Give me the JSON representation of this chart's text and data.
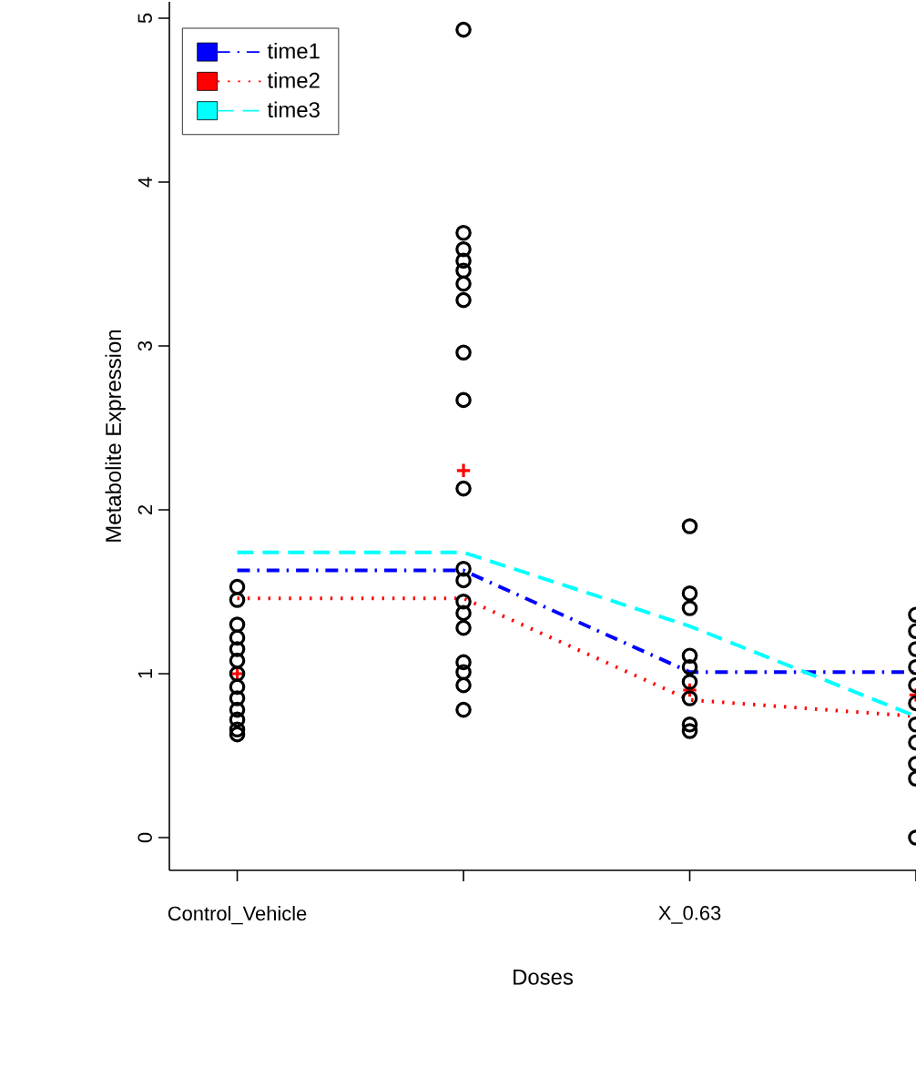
{
  "chart_data": {
    "type": "line",
    "xlabel": "Doses",
    "ylabel": "Metabolite Expression",
    "categories": [
      "Control_Vehicle",
      null,
      "X_0.63",
      null
    ],
    "ylim": [
      -0.2,
      5.1
    ],
    "yticks": [
      0,
      1,
      2,
      3,
      4,
      5
    ],
    "legend": "top left",
    "grid": false,
    "series": [
      {
        "name": "time1",
        "color": "#0000ff",
        "line_style": "dashdot",
        "marker": "none",
        "values": [
          1.63,
          1.63,
          1.01,
          1.01
        ]
      },
      {
        "name": "time2",
        "color": "#ff0000",
        "line_style": "dotted",
        "marker": "none",
        "values": [
          1.46,
          1.46,
          0.84,
          0.74
        ]
      },
      {
        "name": "time3",
        "color": "#00ffff",
        "line_style": "dashed",
        "marker": "none",
        "values": [
          1.74,
          1.74,
          1.29,
          0.74
        ]
      },
      {
        "type": "scatter",
        "color": "#ff0000",
        "marker": "cross",
        "values": [
          1.0,
          2.24,
          0.9,
          0.87
        ]
      },
      {
        "type": "scatter",
        "color": "#000000",
        "marker": "circle",
        "values": [
          1.53,
          4.93,
          1.9,
          1.36
        ]
      },
      {
        "type": "scatter",
        "color": "#000000",
        "marker": "circle",
        "values": [
          1.45,
          3.69,
          1.49,
          1.26
        ]
      },
      {
        "type": "scatter",
        "color": "#000000",
        "marker": "circle",
        "values": [
          1.3,
          3.59,
          1.4,
          1.15
        ]
      },
      {
        "type": "scatter",
        "color": "#000000",
        "marker": "circle",
        "values": [
          1.22,
          3.52,
          1.11,
          1.04
        ]
      },
      {
        "type": "scatter",
        "color": "#000000",
        "marker": "circle",
        "values": [
          1.15,
          3.46,
          1.04,
          0.93
        ]
      },
      {
        "type": "scatter",
        "color": "#000000",
        "marker": "circle",
        "values": [
          1.08,
          3.38,
          0.95,
          0.82
        ]
      },
      {
        "type": "scatter",
        "color": "#000000",
        "marker": "circle",
        "values": [
          1.0,
          3.28,
          0.85,
          0.69
        ]
      },
      {
        "type": "scatter",
        "color": "#000000",
        "marker": "circle",
        "values": [
          0.92,
          2.96,
          0.69,
          0.58
        ]
      },
      {
        "type": "scatter",
        "color": "#000000",
        "marker": "circle",
        "values": [
          0.85,
          2.67,
          0.65,
          0.45
        ]
      },
      {
        "type": "scatter",
        "color": "#000000",
        "marker": "circle",
        "values": [
          0.78,
          2.13,
          null,
          0.36
        ]
      },
      {
        "type": "scatter",
        "color": "#000000",
        "marker": "circle",
        "values": [
          0.72,
          1.64,
          null,
          0.0
        ]
      },
      {
        "type": "scatter",
        "color": "#000000",
        "marker": "circle",
        "values": [
          0.66,
          1.57,
          null,
          null
        ]
      },
      {
        "type": "scatter",
        "color": "#000000",
        "marker": "circle",
        "values": [
          0.63,
          1.44,
          null,
          null
        ]
      },
      {
        "type": "scatter",
        "color": "#000000",
        "marker": "circle",
        "values": [
          null,
          1.37,
          null,
          null
        ]
      },
      {
        "type": "scatter",
        "color": "#000000",
        "marker": "circle",
        "values": [
          null,
          1.28,
          null,
          null
        ]
      },
      {
        "type": "scatter",
        "color": "#000000",
        "marker": "circle",
        "values": [
          null,
          1.07,
          null,
          null
        ]
      },
      {
        "type": "scatter",
        "color": "#000000",
        "marker": "circle",
        "values": [
          null,
          1.01,
          null,
          null
        ]
      },
      {
        "type": "scatter",
        "color": "#000000",
        "marker": "circle",
        "values": [
          null,
          0.93,
          null,
          null
        ]
      },
      {
        "type": "scatter",
        "color": "#000000",
        "marker": "circle",
        "values": [
          null,
          0.78,
          null,
          null
        ]
      }
    ]
  }
}
